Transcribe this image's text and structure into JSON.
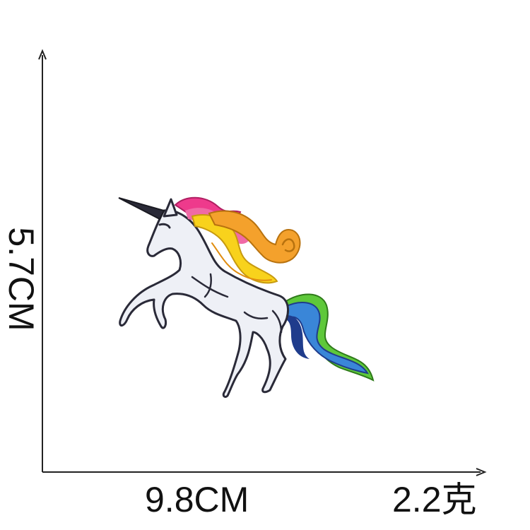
{
  "measurements": {
    "height": "5.7CM",
    "width": "9.8CM",
    "weight": "2.2克"
  },
  "colors": {
    "axis": "#222222",
    "text": "#111111",
    "body": "#eef0f6",
    "outline": "#2a2a38",
    "mane_pink": "#ee3a8c",
    "mane_orange": "#f4a12c",
    "mane_yellow": "#f8d21c",
    "tail_green": "#5ec83a",
    "tail_blue": "#3a86d8",
    "tail_navy": "#1f3c8c"
  },
  "image": {
    "subject": "embroidered-unicorn-patch"
  }
}
